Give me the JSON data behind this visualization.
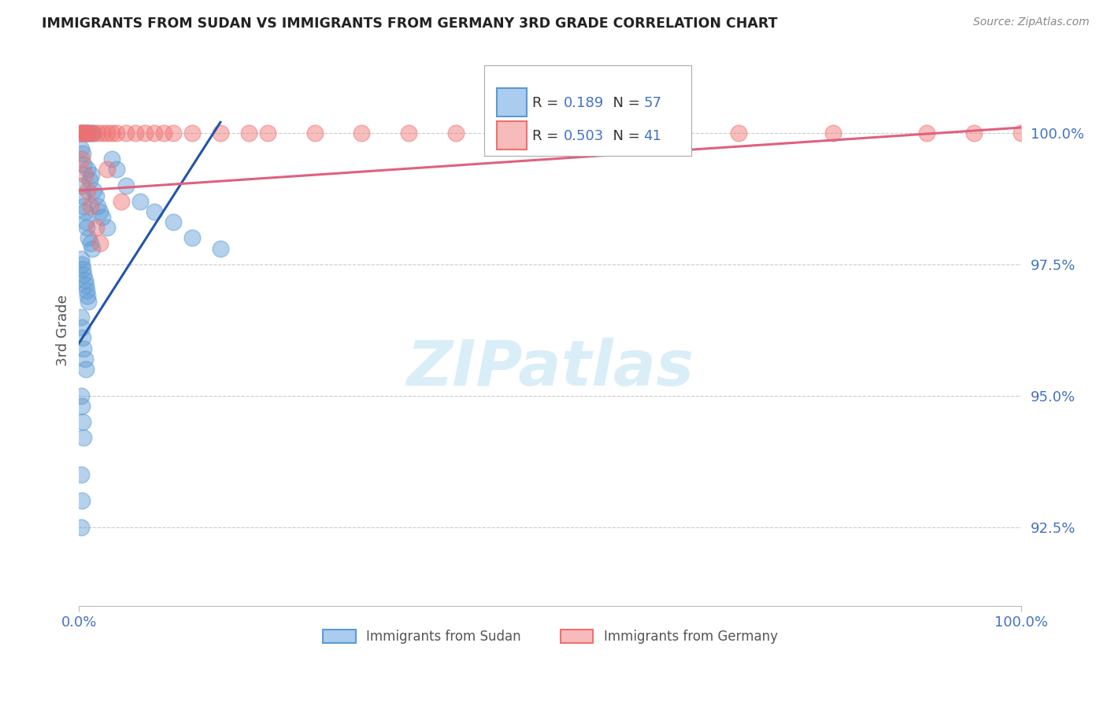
{
  "title": "IMMIGRANTS FROM SUDAN VS IMMIGRANTS FROM GERMANY 3RD GRADE CORRELATION CHART",
  "source_text": "Source: ZipAtlas.com",
  "ylabel": "3rd Grade",
  "xlim": [
    0.0,
    100.0
  ],
  "ylim": [
    91.0,
    101.5
  ],
  "yticks": [
    92.5,
    95.0,
    97.5,
    100.0
  ],
  "ytick_labels": [
    "92.5%",
    "95.0%",
    "97.5%",
    "100.0%"
  ],
  "xtick_labels": [
    "0.0%",
    "100.0%"
  ],
  "sudan_color": "#5b9bd5",
  "germany_color": "#f07070",
  "sudan_label": "Immigrants from Sudan",
  "germany_label": "Immigrants from Germany",
  "R_sudan": "0.189",
  "N_sudan": "57",
  "R_germany": "0.503",
  "N_germany": "41",
  "watermark_text": "ZIPatlas",
  "watermark_color": "#daeef8",
  "background_color": "#ffffff",
  "grid_color": "#cccccc",
  "title_color": "#222222",
  "tick_label_color": "#4472c4",
  "source_color": "#888888",
  "sudan_x": [
    0.3,
    0.5,
    0.8,
    0.9,
    1.2,
    1.5,
    0.2,
    0.4,
    0.5,
    0.9,
    1.1,
    1.3,
    1.6,
    1.8,
    2.0,
    2.2,
    2.5,
    3.0,
    0.3,
    0.4,
    0.5,
    0.6,
    0.7,
    0.8,
    1.0,
    1.2,
    1.4,
    0.2,
    0.3,
    0.4,
    0.5,
    0.6,
    0.7,
    0.8,
    0.9,
    1.0,
    0.2,
    0.3,
    0.4,
    0.5,
    0.6,
    0.7,
    0.2,
    0.3,
    0.4,
    0.5,
    0.2,
    0.3,
    0.2,
    3.5,
    4.0,
    5.0,
    6.5,
    8.0,
    10.0,
    12.0,
    15.0
  ],
  "sudan_y": [
    100.0,
    100.0,
    100.0,
    100.0,
    100.0,
    100.0,
    99.7,
    99.6,
    99.4,
    99.3,
    99.1,
    99.2,
    98.9,
    98.8,
    98.6,
    98.5,
    98.4,
    98.2,
    99.0,
    98.8,
    98.6,
    98.5,
    98.3,
    98.2,
    98.0,
    97.9,
    97.8,
    97.6,
    97.5,
    97.4,
    97.3,
    97.2,
    97.1,
    97.0,
    96.9,
    96.8,
    96.5,
    96.3,
    96.1,
    95.9,
    95.7,
    95.5,
    95.0,
    94.8,
    94.5,
    94.2,
    93.5,
    93.0,
    92.5,
    99.5,
    99.3,
    99.0,
    98.7,
    98.5,
    98.3,
    98.0,
    97.8
  ],
  "germany_x": [
    0.1,
    0.2,
    0.3,
    0.5,
    0.8,
    1.0,
    1.5,
    2.0,
    2.5,
    3.0,
    3.5,
    4.0,
    5.0,
    6.0,
    7.0,
    8.0,
    9.0,
    10.0,
    12.0,
    15.0,
    18.0,
    20.0,
    25.0,
    30.0,
    35.0,
    40.0,
    50.0,
    60.0,
    70.0,
    80.0,
    90.0,
    95.0,
    100.0,
    0.3,
    0.6,
    0.9,
    1.2,
    1.8,
    2.2,
    3.0,
    4.5
  ],
  "germany_y": [
    100.0,
    100.0,
    100.0,
    100.0,
    100.0,
    100.0,
    100.0,
    100.0,
    100.0,
    100.0,
    100.0,
    100.0,
    100.0,
    100.0,
    100.0,
    100.0,
    100.0,
    100.0,
    100.0,
    100.0,
    100.0,
    100.0,
    100.0,
    100.0,
    100.0,
    100.0,
    100.0,
    100.0,
    100.0,
    100.0,
    100.0,
    100.0,
    100.0,
    99.5,
    99.2,
    98.9,
    98.6,
    98.2,
    97.9,
    99.3,
    98.7
  ],
  "sudan_line_x": [
    0.0,
    15.0
  ],
  "sudan_line_y": [
    96.0,
    100.2
  ],
  "germany_line_x": [
    0.0,
    100.0
  ],
  "germany_line_y": [
    98.9,
    100.1
  ]
}
